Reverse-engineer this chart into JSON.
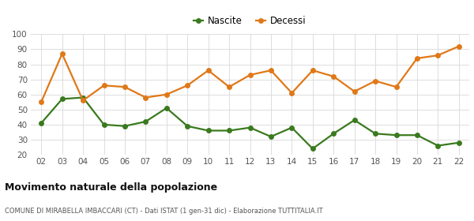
{
  "years": [
    "02",
    "03",
    "04",
    "05",
    "06",
    "07",
    "08",
    "09",
    "10",
    "11",
    "12",
    "13",
    "14",
    "15",
    "16",
    "17",
    "18",
    "19",
    "20",
    "21",
    "22"
  ],
  "nascite": [
    41,
    57,
    58,
    40,
    39,
    42,
    51,
    39,
    36,
    36,
    38,
    32,
    38,
    24,
    34,
    43,
    34,
    33,
    33,
    26,
    28
  ],
  "decessi": [
    55,
    87,
    56,
    66,
    65,
    58,
    60,
    66,
    76,
    65,
    73,
    76,
    61,
    76,
    72,
    62,
    69,
    65,
    84,
    86,
    92
  ],
  "nascite_color": "#3a7a1e",
  "decessi_color": "#e07818",
  "title": "Movimento naturale della popolazione",
  "subtitle": "COMUNE DI MIRABELLA IMBACCARI (CT) - Dati ISTAT (1 gen-31 dic) - Elaborazione TUTTITALIA.IT",
  "legend_nascite": "Nascite",
  "legend_decessi": "Decessi",
  "ylim": [
    20,
    100
  ],
  "yticks": [
    20,
    30,
    40,
    50,
    60,
    70,
    80,
    90,
    100
  ],
  "bg_color": "#ffffff",
  "grid_color": "#d8d8d8",
  "marker_size": 5,
  "line_width": 1.6
}
